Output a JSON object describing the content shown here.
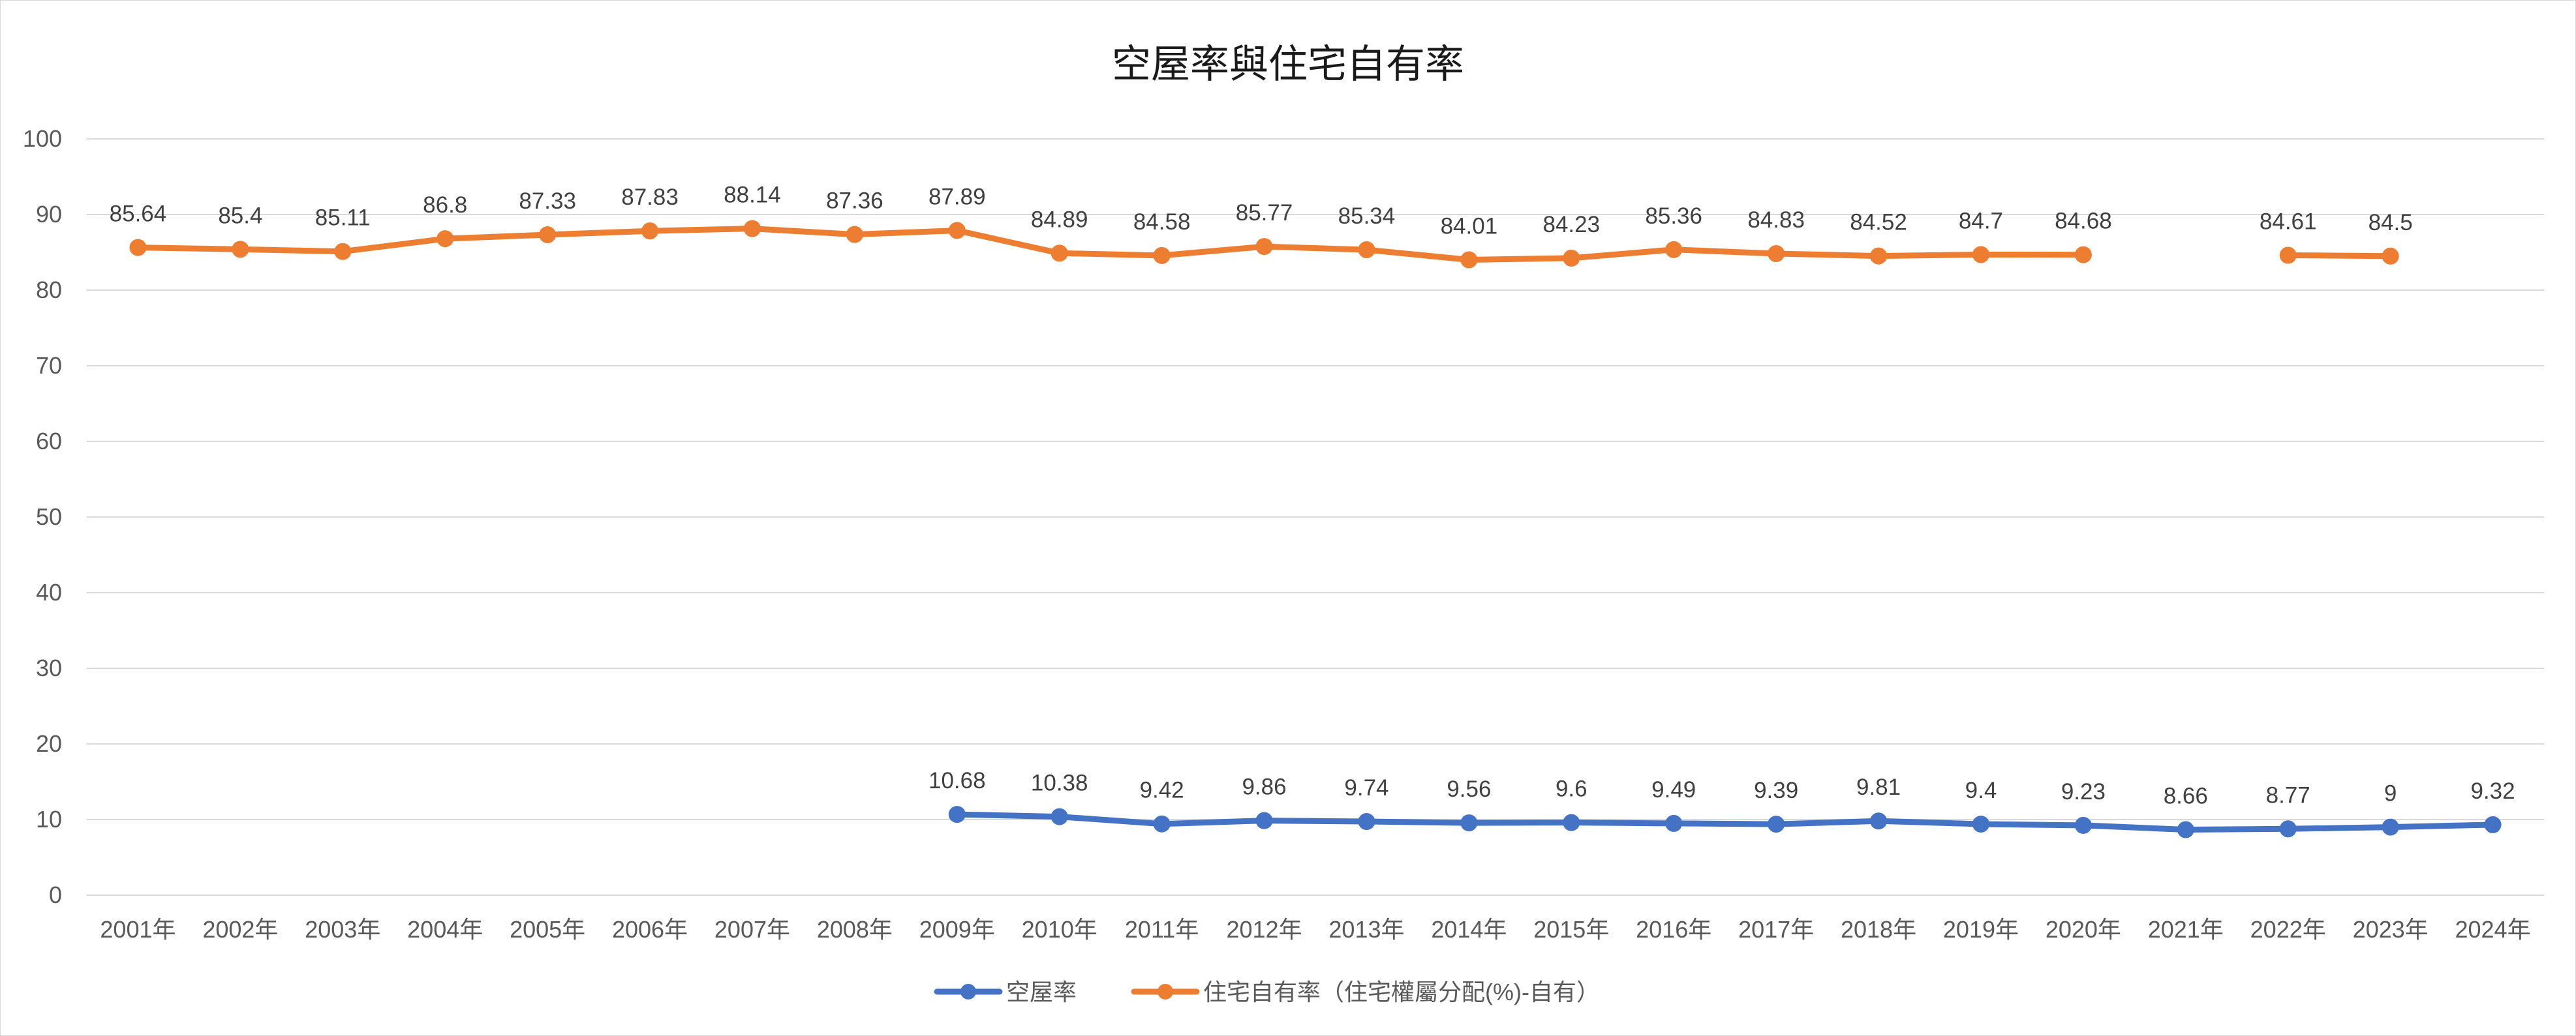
{
  "chart_data": {
    "type": "line",
    "title": "空屋率與住宅自有率",
    "xlabel": "",
    "ylabel": "",
    "ylim": [
      0,
      100
    ],
    "yticks": [
      0,
      10,
      20,
      30,
      40,
      50,
      60,
      70,
      80,
      90,
      100
    ],
    "grid": true,
    "legend_position": "bottom",
    "categories": [
      "2001年",
      "2002年",
      "2003年",
      "2004年",
      "2005年",
      "2006年",
      "2007年",
      "2008年",
      "2009年",
      "2010年",
      "2011年",
      "2012年",
      "2013年",
      "2014年",
      "2015年",
      "2016年",
      "2017年",
      "2018年",
      "2019年",
      "2020年",
      "2021年",
      "2022年",
      "2023年",
      "2024年"
    ],
    "series": [
      {
        "name": "空屋率",
        "color": "#4472c4",
        "values": [
          null,
          null,
          null,
          null,
          null,
          null,
          null,
          null,
          10.68,
          10.38,
          9.42,
          9.86,
          9.74,
          9.56,
          9.6,
          9.49,
          9.39,
          9.81,
          9.4,
          9.23,
          8.66,
          8.77,
          9,
          9.32
        ]
      },
      {
        "name": "住宅自有率（住宅權屬分配(%)-自有）",
        "color": "#ed7d31",
        "values": [
          85.64,
          85.4,
          85.11,
          86.8,
          87.33,
          87.83,
          88.14,
          87.36,
          87.89,
          84.89,
          84.58,
          85.77,
          85.34,
          84.01,
          84.23,
          85.36,
          84.83,
          84.52,
          84.7,
          84.68,
          null,
          84.61,
          84.5,
          null
        ]
      }
    ]
  }
}
